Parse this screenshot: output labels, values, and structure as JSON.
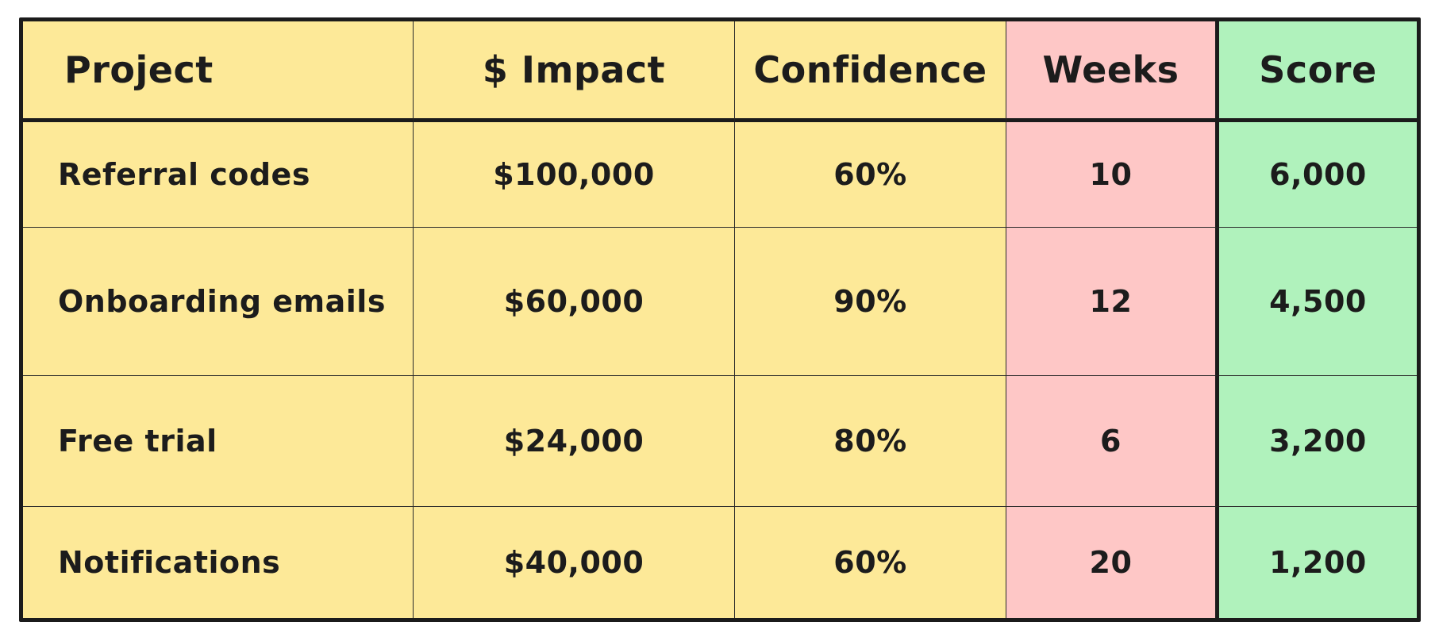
{
  "table": {
    "headers": [
      "Project",
      "$ Impact",
      "Confidence",
      "Weeks",
      "Score"
    ],
    "rows": [
      [
        "Referral codes",
        "$100,000",
        "60%",
        "10",
        "6,000"
      ],
      [
        "Onboarding emails",
        "$60,000",
        "90%",
        "12",
        "4,500"
      ],
      [
        "Free trial",
        "$24,000",
        "80%",
        "6",
        "3,200"
      ],
      [
        "Notifications",
        "$40,000",
        "60%",
        "20",
        "1,200"
      ]
    ],
    "colors": {
      "main": "#fde998",
      "weeks": "#fec7c6",
      "score": "#b0f2bc",
      "ink": "#1b1b1b"
    }
  }
}
